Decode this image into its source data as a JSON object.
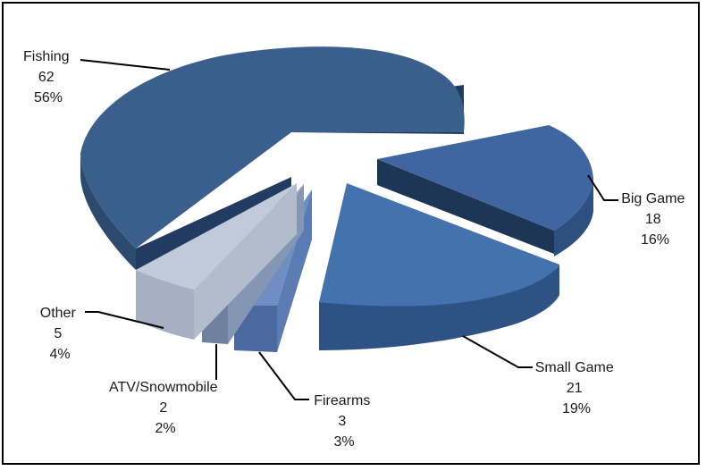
{
  "chart_data": {
    "type": "pie",
    "style": "3d-exploded",
    "title": "",
    "slices": [
      {
        "label": "Fishing",
        "value": 62,
        "percent": "56%",
        "color": "#3b5f8d"
      },
      {
        "label": "Big Game",
        "value": 18,
        "percent": "16%",
        "color": "#3f66a0"
      },
      {
        "label": "Small Game",
        "value": 21,
        "percent": "19%",
        "color": "#4472ae"
      },
      {
        "label": "Firearms",
        "value": 3,
        "percent": "3%",
        "color": "#6f8ec4"
      },
      {
        "label": "ATV/Snowmobile",
        "value": 2,
        "percent": "2%",
        "color": "#9cb0d3"
      },
      {
        "label": "Other",
        "value": 5,
        "percent": "4%",
        "color": "#c0cadb"
      }
    ],
    "legend": "none",
    "data_labels": "outside-with-leader-lines"
  }
}
